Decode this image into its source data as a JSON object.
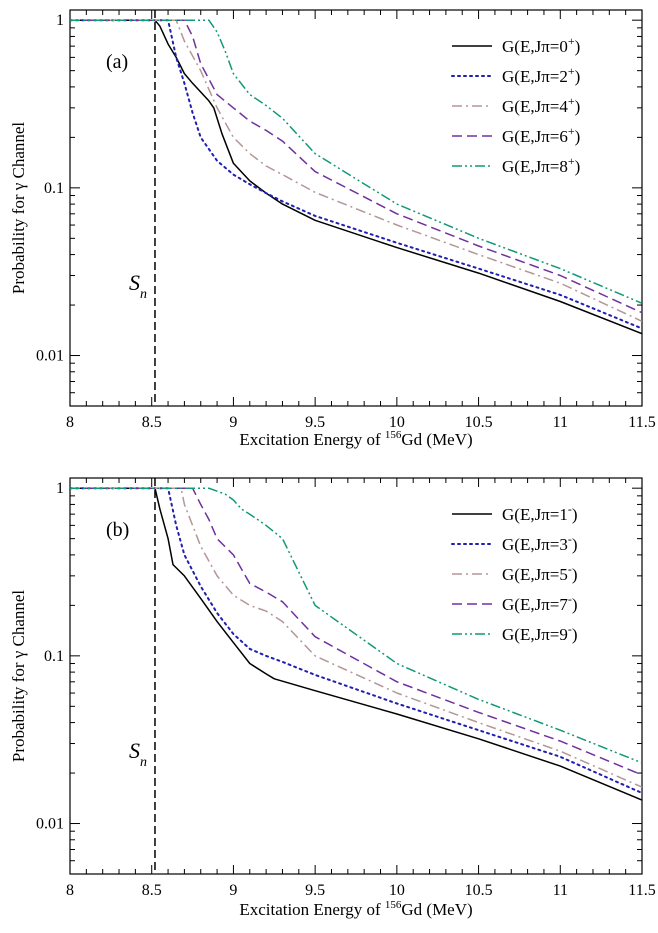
{
  "chart_data": [
    {
      "type": "line",
      "panel_label": "(a)",
      "xlabel_prefix": "Excitation Energy of ",
      "xlabel_sup": "156",
      "xlabel_suffix": "Gd (MeV)",
      "ylabel": "Probability for γ Channel",
      "xlim": [
        8,
        11.5
      ],
      "ylim": [
        0.005,
        1.15
      ],
      "yscale": "log",
      "x_ticks": [
        8,
        8.5,
        9,
        9.5,
        10,
        10.5,
        11,
        11.5
      ],
      "x_tick_labels": [
        "8",
        "8.5",
        "9",
        "9.5",
        "10",
        "10.5",
        "11",
        "11.5"
      ],
      "y_ticks": [
        1,
        0.1,
        0.01
      ],
      "y_tick_labels": [
        "1",
        "0.1",
        "0.01"
      ],
      "marker": {
        "x": 8.52,
        "label": "S",
        "sub": "n"
      },
      "legend_position": "top-right",
      "series": [
        {
          "name_main": "G(E,Jπ=0",
          "name_sup": "+",
          "name_tail": ")",
          "color": "#000000",
          "dash": "",
          "x": [
            8,
            8.52,
            8.55,
            8.6,
            8.65,
            8.7,
            8.75,
            8.85,
            8.88,
            8.93,
            9.0,
            9.1,
            9.2,
            9.3,
            9.5,
            10,
            10.5,
            11,
            11.5
          ],
          "y": [
            1,
            1,
            0.92,
            0.72,
            0.6,
            0.48,
            0.42,
            0.33,
            0.3,
            0.21,
            0.14,
            0.11,
            0.093,
            0.08,
            0.064,
            0.044,
            0.031,
            0.021,
            0.0135
          ]
        },
        {
          "name_main": "G(E,Jπ=2",
          "name_sup": "+",
          "name_tail": ")",
          "color": "#1f1fb4",
          "dash": "2,4",
          "x": [
            8,
            8.6,
            8.65,
            8.7,
            8.75,
            8.8,
            8.9,
            9.0,
            9.1,
            9.2,
            9.3,
            9.5,
            10,
            10.5,
            11,
            11.5
          ],
          "y": [
            1,
            1,
            0.6,
            0.42,
            0.28,
            0.2,
            0.145,
            0.12,
            0.105,
            0.093,
            0.083,
            0.068,
            0.047,
            0.033,
            0.023,
            0.0145
          ]
        },
        {
          "name_main": "G(E,Jπ=4",
          "name_sup": "+",
          "name_tail": ")",
          "color": "#b49696",
          "dash": "10,4,2,4",
          "x": [
            8,
            8.65,
            8.7,
            8.8,
            8.9,
            9.0,
            9.1,
            9.2,
            9.3,
            9.5,
            10,
            10.5,
            11,
            11.5
          ],
          "y": [
            1,
            1,
            0.75,
            0.5,
            0.3,
            0.2,
            0.16,
            0.135,
            0.12,
            0.094,
            0.06,
            0.04,
            0.027,
            0.016
          ]
        },
        {
          "name_main": "G(E,Jπ=6",
          "name_sup": "+",
          "name_tail": ")",
          "color": "#7030a0",
          "dash": "10,5",
          "x": [
            8,
            8.7,
            8.75,
            8.8,
            8.9,
            9.0,
            9.1,
            9.2,
            9.3,
            9.5,
            10,
            10.5,
            11,
            11.5
          ],
          "y": [
            1,
            1,
            0.8,
            0.55,
            0.36,
            0.3,
            0.25,
            0.22,
            0.19,
            0.125,
            0.07,
            0.045,
            0.03,
            0.018
          ]
        },
        {
          "name_main": "G(E,Jπ=8",
          "name_sup": "+",
          "name_tail": ")",
          "color": "#119977",
          "dash": "10,3,2,3,2,3",
          "x": [
            8,
            8.85,
            8.9,
            8.95,
            9.0,
            9.1,
            9.2,
            9.3,
            9.5,
            10,
            10.5,
            11,
            11.5
          ],
          "y": [
            1,
            1,
            0.85,
            0.65,
            0.48,
            0.36,
            0.31,
            0.26,
            0.16,
            0.08,
            0.05,
            0.033,
            0.0205
          ]
        }
      ]
    },
    {
      "type": "line",
      "panel_label": "(b)",
      "xlabel_prefix": "Excitation Energy of ",
      "xlabel_sup": "156",
      "xlabel_suffix": "Gd (MeV)",
      "ylabel": "Probability for γ Channel",
      "xlim": [
        8,
        11.5
      ],
      "ylim": [
        0.005,
        1.15
      ],
      "yscale": "log",
      "x_ticks": [
        8,
        8.5,
        9,
        9.5,
        10,
        10.5,
        11,
        11.5
      ],
      "x_tick_labels": [
        "8",
        "8.5",
        "9",
        "9.5",
        "10",
        "10.5",
        "11",
        "11.5"
      ],
      "y_ticks": [
        1,
        0.1,
        0.01
      ],
      "y_tick_labels": [
        "1",
        "0.1",
        "0.01"
      ],
      "marker": {
        "x": 8.52,
        "label": "S",
        "sub": "n"
      },
      "legend_position": "top-right",
      "series": [
        {
          "name_main": "G(E,Jπ=1",
          "name_sup": "-",
          "name_tail": ")",
          "color": "#000000",
          "dash": "",
          "x": [
            8,
            8.52,
            8.55,
            8.6,
            8.63,
            8.7,
            8.8,
            8.9,
            9.0,
            9.1,
            9.2,
            9.25,
            9.5,
            10,
            10.5,
            11,
            11.5
          ],
          "y": [
            1,
            1,
            0.75,
            0.5,
            0.35,
            0.3,
            0.22,
            0.16,
            0.12,
            0.09,
            0.078,
            0.073,
            0.062,
            0.045,
            0.032,
            0.022,
            0.0138
          ]
        },
        {
          "name_main": "G(E,Jπ=3",
          "name_sup": "-",
          "name_tail": ")",
          "color": "#1f1fb4",
          "dash": "2,4",
          "x": [
            8,
            8.6,
            8.65,
            8.7,
            8.8,
            8.9,
            9.0,
            9.1,
            9.2,
            9.3,
            9.5,
            10,
            10.5,
            11,
            11.5
          ],
          "y": [
            1,
            1,
            0.6,
            0.4,
            0.26,
            0.18,
            0.135,
            0.11,
            0.1,
            0.092,
            0.077,
            0.052,
            0.036,
            0.025,
            0.0152
          ]
        },
        {
          "name_main": "G(E,Jπ=5",
          "name_sup": "-",
          "name_tail": ")",
          "color": "#b49696",
          "dash": "10,4,2,4",
          "x": [
            8,
            8.68,
            8.7,
            8.75,
            8.8,
            8.9,
            9.0,
            9.1,
            9.2,
            9.3,
            9.5,
            10,
            10.5,
            11,
            11.5
          ],
          "y": [
            1,
            1,
            0.8,
            0.6,
            0.45,
            0.3,
            0.23,
            0.2,
            0.185,
            0.16,
            0.1,
            0.06,
            0.04,
            0.027,
            0.0165
          ]
        },
        {
          "name_main": "G(E,Jπ=7",
          "name_sup": "-",
          "name_tail": ")",
          "color": "#7030a0",
          "dash": "10,5",
          "x": [
            8,
            8.75,
            8.8,
            8.85,
            8.9,
            9.0,
            9.1,
            9.2,
            9.3,
            9.5,
            10,
            10.5,
            11,
            11.5
          ],
          "y": [
            1,
            1,
            0.8,
            0.65,
            0.5,
            0.4,
            0.27,
            0.24,
            0.21,
            0.13,
            0.07,
            0.046,
            0.031,
            0.0195
          ]
        },
        {
          "name_main": "G(E,Jπ=9",
          "name_sup": "-",
          "name_tail": ")",
          "color": "#119977",
          "dash": "10,3,2,3,2,3",
          "x": [
            8,
            8.85,
            8.95,
            9.0,
            9.05,
            9.1,
            9.2,
            9.3,
            9.5,
            10,
            10.5,
            11,
            11.5
          ],
          "y": [
            1,
            1,
            0.92,
            0.85,
            0.75,
            0.7,
            0.6,
            0.5,
            0.2,
            0.09,
            0.055,
            0.036,
            0.023
          ]
        }
      ]
    }
  ]
}
